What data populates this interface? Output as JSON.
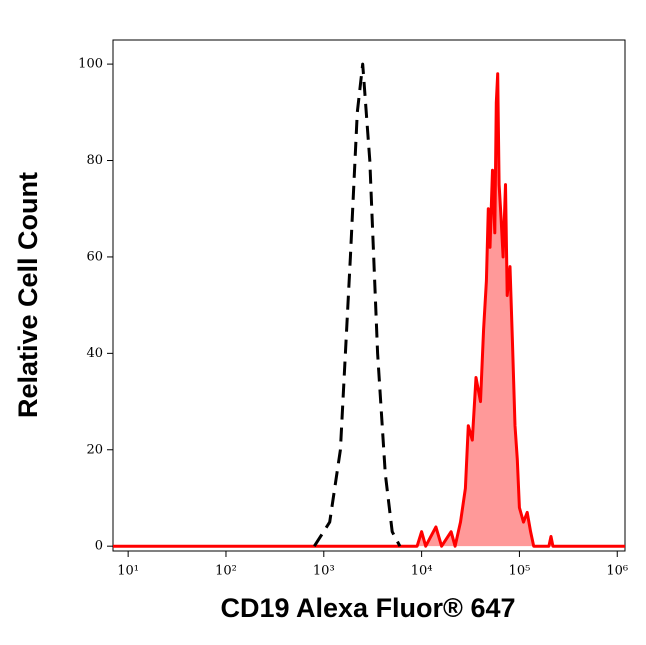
{
  "chart_data": {
    "type": "histogram-overlay",
    "x_label": "CD19 Alexa Fluor® 647",
    "y_label": "Relative Cell Count",
    "x_scale": "log",
    "xlim": [
      7,
      1200000
    ],
    "ylim": [
      -1,
      105
    ],
    "xticks": [
      {
        "value": 10,
        "label": "10¹"
      },
      {
        "value": 100,
        "label": "10²"
      },
      {
        "value": 1000,
        "label": "10³"
      },
      {
        "value": 10000,
        "label": "10⁴"
      },
      {
        "value": 100000,
        "label": "10⁵"
      },
      {
        "value": 1000000,
        "label": "10⁶"
      }
    ],
    "yticks": [
      0,
      20,
      40,
      60,
      80,
      100
    ],
    "series": [
      {
        "color": "#ff0000",
        "fill": "#ff9999",
        "dash": false,
        "x": [
          7,
          9000,
          10000,
          11000,
          14000,
          16000,
          20000,
          22000,
          25000,
          28000,
          30000,
          33000,
          36000,
          40000,
          43000,
          46000,
          48000,
          50000,
          53000,
          56000,
          58000,
          60000,
          62000,
          65000,
          68000,
          72000,
          75000,
          80000,
          85000,
          90000,
          95000,
          100000,
          110000,
          120000,
          130000,
          140000,
          200000,
          210000,
          220000,
          1200000
        ],
        "values": [
          0,
          0,
          3,
          0,
          4,
          0,
          3,
          0,
          5,
          12,
          25,
          22,
          35,
          30,
          45,
          55,
          70,
          62,
          78,
          65,
          92,
          98,
          75,
          68,
          60,
          75,
          52,
          58,
          42,
          25,
          18,
          8,
          5,
          7,
          3,
          0,
          0,
          2,
          0,
          0
        ]
      },
      {
        "color": "#000000",
        "fill": "none",
        "dash": true,
        "x": [
          800,
          1150,
          1480,
          1870,
          2200,
          2500,
          2950,
          3550,
          4250,
          5000,
          6000
        ],
        "values": [
          0,
          5,
          20,
          60,
          90,
          100,
          80,
          40,
          15,
          3,
          0
        ]
      }
    ]
  }
}
